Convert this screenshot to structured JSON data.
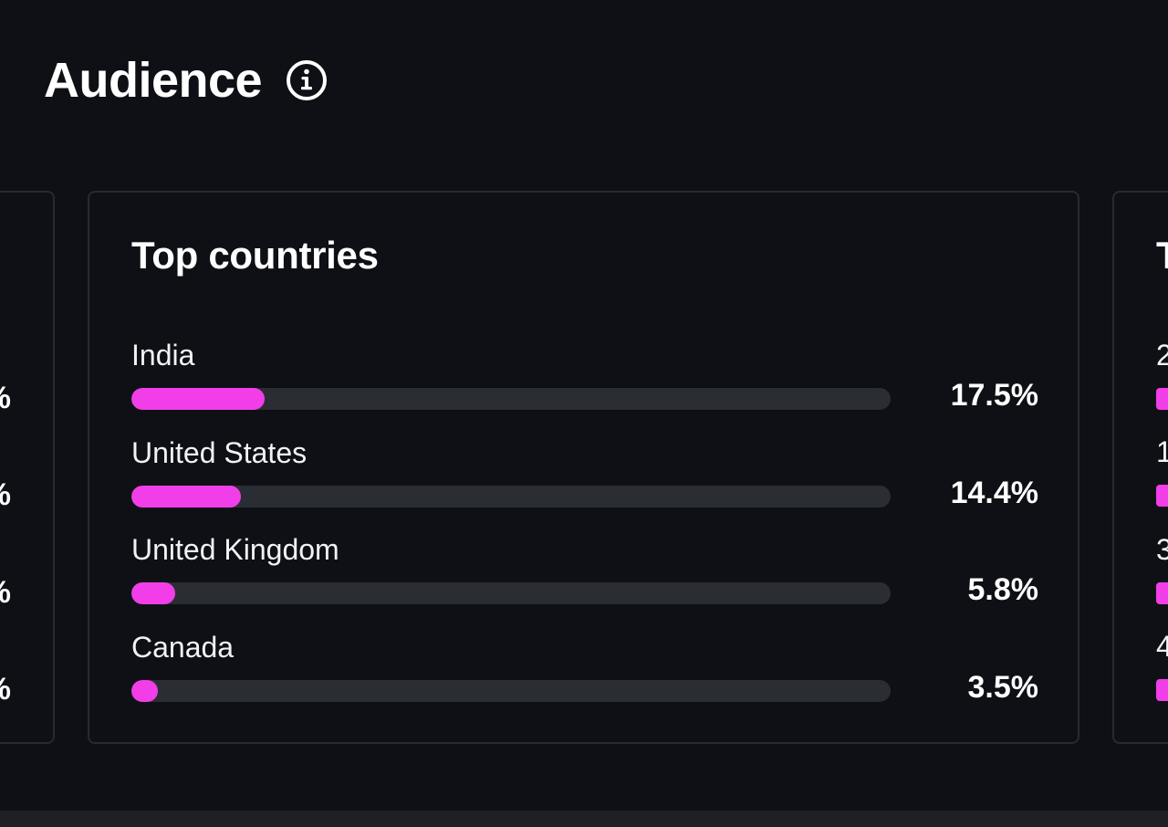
{
  "section": {
    "title": "Audience",
    "info_icon": "info-circle-icon"
  },
  "left_card": {
    "values": [
      "%",
      "%",
      "%",
      "%"
    ]
  },
  "top_countries": {
    "title": "Top countries",
    "rows": [
      {
        "label": "India",
        "value": "17.5%",
        "fill_percent": 17.5
      },
      {
        "label": "United States",
        "value": "14.4%",
        "fill_percent": 14.4
      },
      {
        "label": "United Kingdom",
        "value": "5.8%",
        "fill_percent": 5.8
      },
      {
        "label": "Canada",
        "value": "3.5%",
        "fill_percent": 3.5
      }
    ]
  },
  "right_card": {
    "title": "T",
    "labels": [
      "2",
      "1",
      "3",
      "4"
    ]
  },
  "colors": {
    "background": "#0e1015",
    "card_border": "#272a31",
    "bar_track": "#2b2d35",
    "bar_fill": "#f23ee8",
    "text": "#ffffff"
  }
}
